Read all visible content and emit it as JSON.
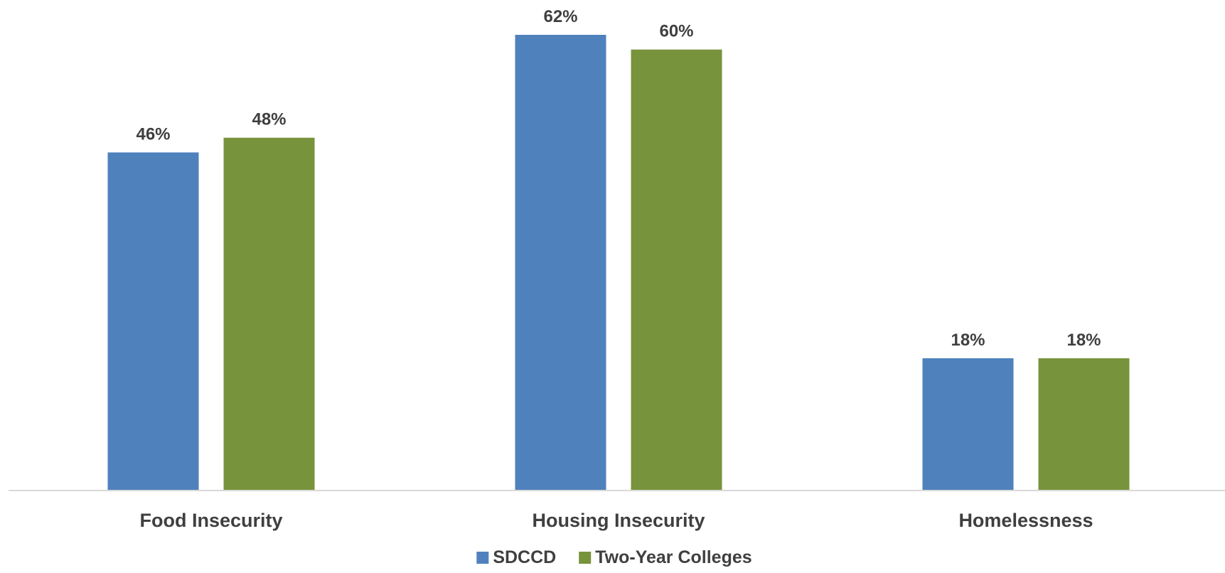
{
  "chart_data": {
    "type": "bar",
    "categories": [
      "Food Insecurity",
      "Housing Insecurity",
      "Homelessness"
    ],
    "series": [
      {
        "name": "SDCCD",
        "values": [
          46,
          62,
          18
        ],
        "labels": [
          "46%",
          "62%",
          "18%"
        ]
      },
      {
        "name": "Two-Year Colleges",
        "values": [
          48,
          60,
          18
        ],
        "labels": [
          "48%",
          "60%",
          "18%"
        ]
      }
    ],
    "ylim": [
      0,
      62
    ],
    "unit": "%",
    "grid": false,
    "legend_position": "bottom-center",
    "colors": {
      "SDCCD": "#4f81bd",
      "Two-Year Colleges": "#77933c"
    }
  }
}
